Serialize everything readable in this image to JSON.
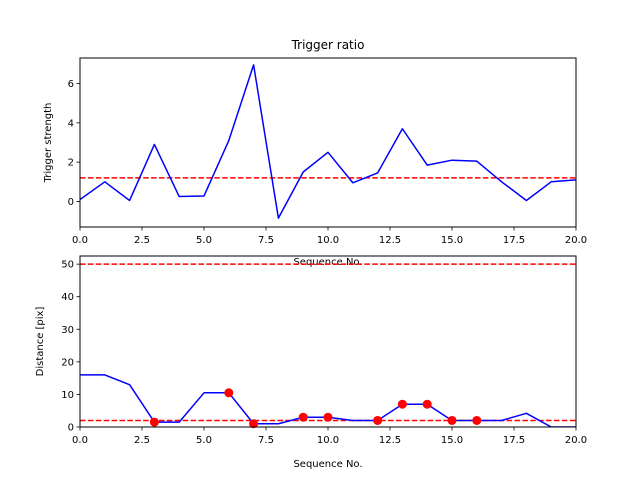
{
  "chart_data": [
    {
      "type": "line",
      "title": "Trigger ratio",
      "xlabel": "Sequence No.",
      "ylabel": "Trigger strength",
      "xlim": [
        0,
        20
      ],
      "ylim": [
        -1.3,
        7.3
      ],
      "xticks": [
        "0.0",
        "2.5",
        "5.0",
        "7.5",
        "10.0",
        "12.5",
        "15.0",
        "17.5",
        "20.0"
      ],
      "yticks": [
        "0",
        "2",
        "4",
        "6"
      ],
      "grid": false,
      "series": [
        {
          "color": "#0000ff",
          "x": [
            0,
            1,
            2,
            3,
            4,
            5,
            6,
            7,
            8,
            9,
            10,
            11,
            12,
            13,
            14,
            15,
            16,
            17,
            18,
            19,
            20
          ],
          "y": [
            0.1,
            1.0,
            0.05,
            2.9,
            0.25,
            0.28,
            3.1,
            6.95,
            -0.85,
            1.5,
            2.5,
            0.95,
            1.45,
            3.7,
            1.85,
            2.1,
            2.05,
            1.0,
            0.05,
            1.0,
            1.1
          ]
        }
      ],
      "hlines": [
        {
          "y": 1.2,
          "color": "#ff0000",
          "style": "dashed"
        }
      ]
    },
    {
      "type": "line",
      "title": "",
      "xlabel": "Sequence No.",
      "ylabel": "Distance [pix]",
      "xlim": [
        0,
        20
      ],
      "ylim": [
        0,
        52.5
      ],
      "xticks": [
        "0.0",
        "2.5",
        "5.0",
        "7.5",
        "10.0",
        "12.5",
        "15.0",
        "17.5",
        "20.0"
      ],
      "yticks": [
        "0",
        "10",
        "20",
        "30",
        "40",
        "50"
      ],
      "grid": false,
      "series": [
        {
          "color": "#0000ff",
          "x": [
            0,
            1,
            2,
            3,
            4,
            5,
            6,
            7,
            8,
            9,
            10,
            11,
            12,
            13,
            14,
            15,
            16,
            17,
            18,
            19,
            20
          ],
          "y": [
            16,
            16,
            13,
            1.5,
            1.5,
            10.5,
            10.5,
            1,
            1,
            3,
            3,
            2,
            2,
            7,
            7,
            2,
            2,
            2,
            4.2,
            0,
            0
          ]
        }
      ],
      "markers": {
        "color": "#ff0000",
        "x": [
          3,
          6,
          7,
          9,
          10,
          12,
          13,
          14,
          15,
          16
        ],
        "y": [
          1.5,
          10.5,
          1,
          3,
          3,
          2,
          7,
          7,
          2,
          2
        ]
      },
      "hlines": [
        {
          "y": 50,
          "color": "#ff0000",
          "style": "dashed"
        },
        {
          "y": 2,
          "color": "#ff0000",
          "style": "dashed"
        }
      ]
    }
  ]
}
